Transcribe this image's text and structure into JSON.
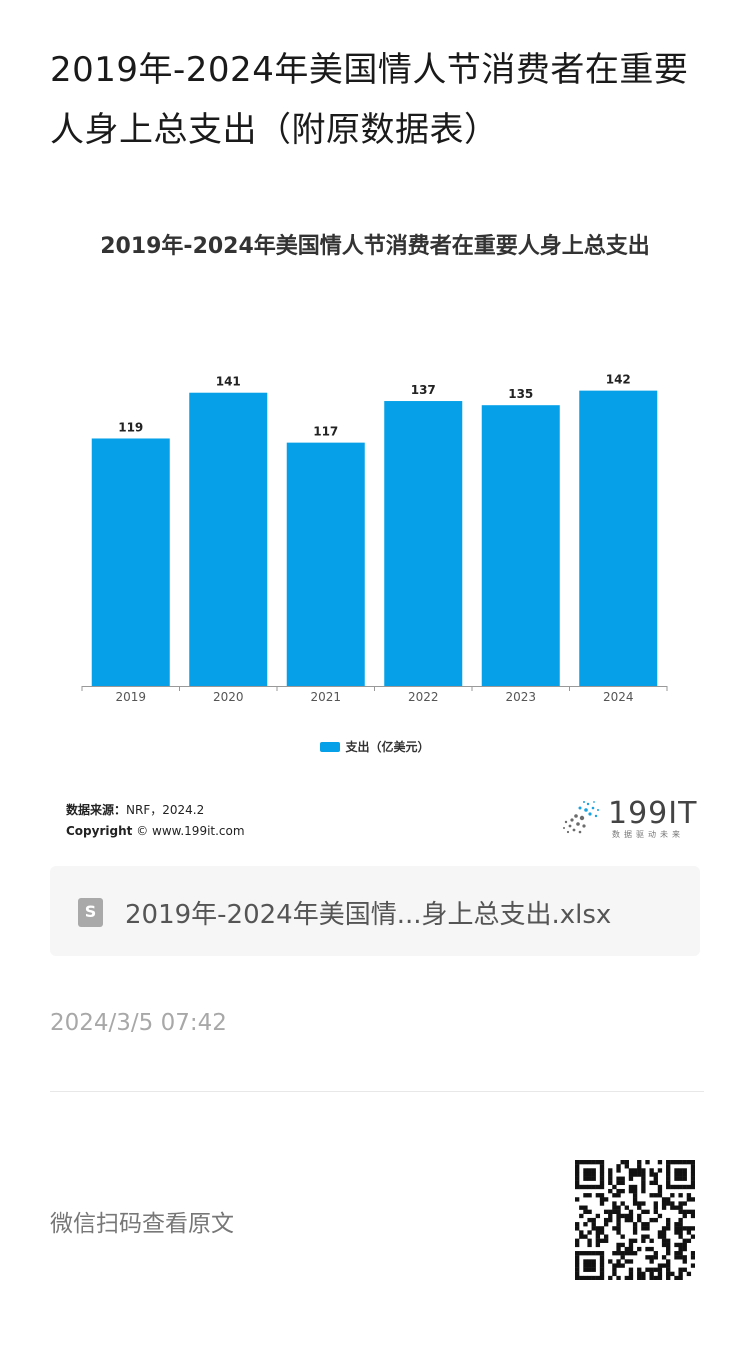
{
  "page": {
    "title": "2019年-2024年美国情人节消费者在重要人身上总支出（附原数据表）",
    "timestamp": "2024/3/5 07:42",
    "qr_prompt": "微信扫码查看原文"
  },
  "file": {
    "name": "2019年-2024年美国情...身上总支出.xlsx",
    "icon": "spreadsheet-icon",
    "icon_glyph": "S"
  },
  "source": {
    "label": "数据来源：",
    "value": "NRF，2024.2",
    "copyright_label": "Copyright",
    "copyright_value": "© www.199it.com"
  },
  "logo": {
    "text": "199IT",
    "subtext": "数据驱动未来"
  },
  "colors": {
    "bar": "#05a0e8",
    "axis": "#999999"
  },
  "chart_data": {
    "type": "bar",
    "title": "2019年-2024年美国情人节消费者在重要人身上总支出",
    "categories": [
      "2019",
      "2020",
      "2021",
      "2022",
      "2023",
      "2024"
    ],
    "series": [
      {
        "name": "支出（亿美元）",
        "values": [
          119,
          141,
          117,
          137,
          135,
          142
        ]
      }
    ],
    "xlabel": "",
    "ylabel": "",
    "ylim": [
      0,
      150
    ],
    "grid": false,
    "legend_position": "bottom",
    "data_labels": true
  }
}
